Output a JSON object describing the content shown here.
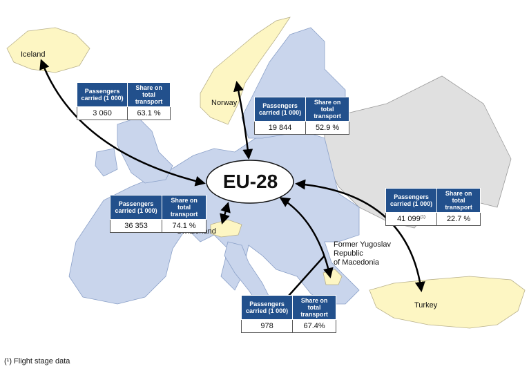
{
  "map": {
    "center_label": "EU-28",
    "colors": {
      "sea": "#ffffff",
      "eu_member": "#c9d5ec",
      "partner_country": "#fdf6c3",
      "other_country": "#e0e0e0",
      "arrow": "#000000",
      "table_header": "#22508c"
    },
    "headers": {
      "passengers": "Passengers carried (1 000)",
      "share": "Share on total transport"
    },
    "partners": [
      {
        "id": "iceland",
        "label": "Iceland",
        "passengers": "3 060",
        "share": "63.1 %",
        "footnote": ""
      },
      {
        "id": "norway",
        "label": "Norway",
        "passengers": "19 844",
        "share": "52.9 %",
        "footnote": ""
      },
      {
        "id": "switzerland",
        "label": "Switzerland",
        "passengers": "36 353",
        "share": "74.1 %",
        "footnote": ""
      },
      {
        "id": "turkey",
        "label": "Turkey",
        "passengers": "41 099",
        "share": "22.7 %",
        "footnote": "(1)"
      },
      {
        "id": "fyrom",
        "label": "Former Yugoslav Republic of Macedonia",
        "label_lines": [
          "Former Yugoslav",
          "Republic",
          "of Macedonia"
        ],
        "passengers": "978",
        "share": "67.4%",
        "footnote": ""
      }
    ]
  },
  "footnote": "(¹) Flight stage data"
}
